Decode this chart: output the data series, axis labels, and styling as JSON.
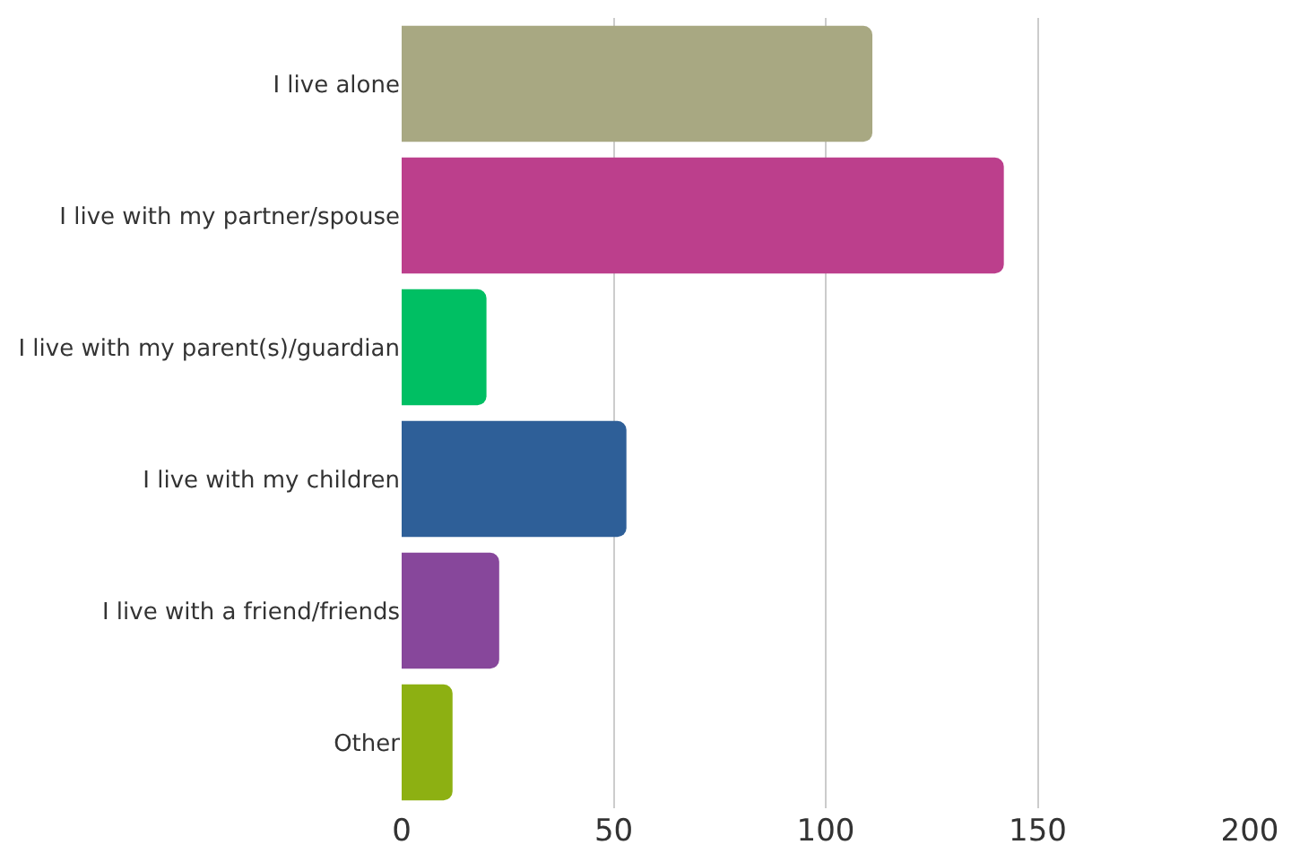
{
  "chart_data": {
    "type": "bar",
    "orientation": "horizontal",
    "categories": [
      "I live alone",
      "I live with my partner/spouse",
      "I live with my parent(s)/guardian",
      "I live with my children",
      "I live with a friend/friends",
      "Other"
    ],
    "values": [
      111,
      142,
      20,
      53,
      23,
      12
    ],
    "colors": [
      "#a8a882",
      "#bc3f8c",
      "#00bf63",
      "#2e5f98",
      "#87479b",
      "#8db012"
    ],
    "xlim": [
      0,
      200
    ],
    "xticks": [
      0,
      50,
      100,
      150,
      200
    ],
    "grid": "x"
  }
}
